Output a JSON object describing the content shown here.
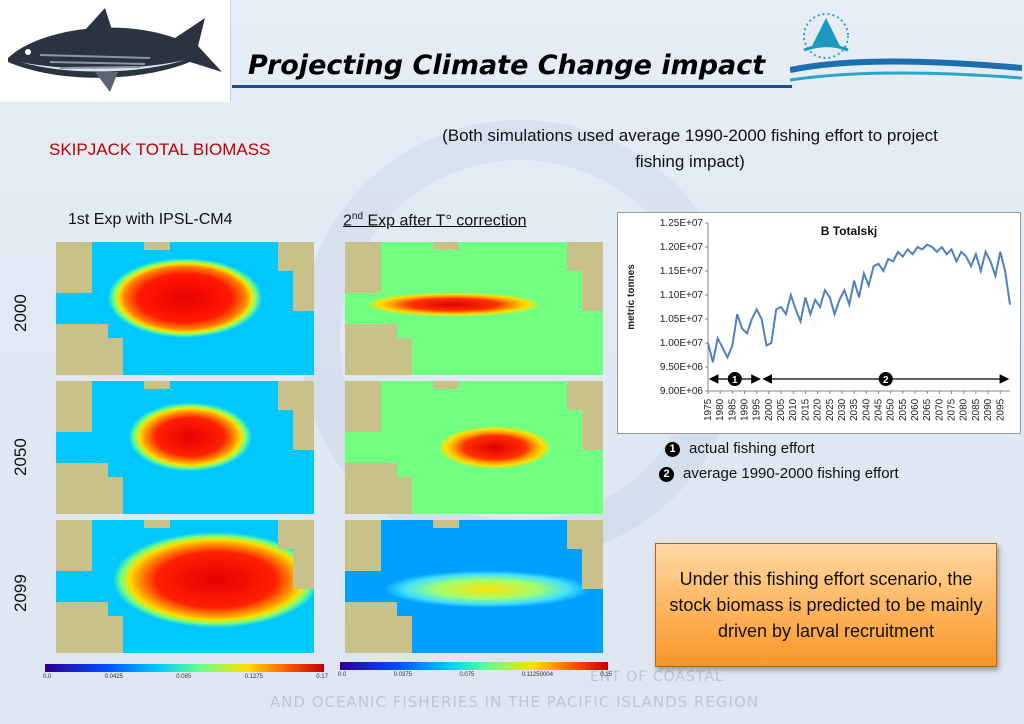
{
  "title": "Projecting Climate Change impact",
  "subtitle": "SKIPJACK TOTAL BIOMASS",
  "note": "(Both simulations used average 1990-2000 fishing effort to project fishing impact)",
  "experiments": {
    "exp1": "1st Exp with IPSL-CM4",
    "exp2_prefix": "2",
    "exp2_sup": "nd",
    "exp2_suffix": " Exp after T° correction"
  },
  "years": [
    "2000",
    "2050",
    "2099"
  ],
  "colorbars": {
    "left": [
      "0.0",
      "0.0425",
      "0.085",
      "0.1275",
      "0.17"
    ],
    "right": [
      "0.0",
      "0.0375",
      "0.075",
      "0.11250004",
      "0.15"
    ]
  },
  "legend": {
    "item1_num": "1",
    "item1": "actual fishing effort",
    "item2_num": "2",
    "item2": "average 1990-2000 fishing effort"
  },
  "callout": "Under this fishing effort scenario, the stock biomass is predicted to be mainly driven by larval recruitment",
  "watermark": [
    "ENT OF COASTAL",
    "AND OCEANIC FISHERIES IN THE PACIFIC ISLANDS REGION"
  ],
  "colors": {
    "title_rule": "#1b4f8f",
    "subtitle": "#c00000",
    "series": "#4f81bd",
    "callout": "#f7962a"
  },
  "chart_data": {
    "type": "line",
    "title": "B Totalskj",
    "ylabel": "metric tonnes",
    "ylim": [
      9000000,
      12500000
    ],
    "yticks": [
      "9.00E+06",
      "9.50E+06",
      "1.00E+07",
      "1.05E+07",
      "1.10E+07",
      "1.15E+07",
      "1.20E+07",
      "1.25E+07"
    ],
    "xticks": [
      "1975",
      "1980",
      "1985",
      "1990",
      "1995",
      "2000",
      "2005",
      "2010",
      "2015",
      "2020",
      "2025",
      "2030",
      "2035",
      "2040",
      "2045",
      "2050",
      "2055",
      "2060",
      "2065",
      "2070",
      "2075",
      "2080",
      "2085",
      "2090",
      "2095"
    ],
    "x": [
      1975,
      1977,
      1979,
      1981,
      1983,
      1985,
      1987,
      1989,
      1991,
      1993,
      1995,
      1997,
      1999,
      2001,
      2003,
      2005,
      2007,
      2009,
      2011,
      2013,
      2015,
      2017,
      2019,
      2021,
      2023,
      2025,
      2027,
      2029,
      2031,
      2033,
      2035,
      2037,
      2039,
      2041,
      2043,
      2045,
      2047,
      2049,
      2051,
      2053,
      2055,
      2057,
      2059,
      2061,
      2063,
      2065,
      2067,
      2069,
      2071,
      2073,
      2075,
      2077,
      2079,
      2081,
      2083,
      2085,
      2087,
      2089,
      2091,
      2093,
      2095,
      2097,
      2099
    ],
    "y": [
      10000000,
      9600000,
      10100000,
      9900000,
      9700000,
      9950000,
      10600000,
      10300000,
      10200000,
      10500000,
      10700000,
      10500000,
      9950000,
      10000000,
      10700000,
      10750000,
      10600000,
      11000000,
      10700000,
      10450000,
      10950000,
      10600000,
      10900000,
      10750000,
      11100000,
      10950000,
      10600000,
      10900000,
      11100000,
      10800000,
      11300000,
      10950000,
      11450000,
      11200000,
      11600000,
      11650000,
      11500000,
      11750000,
      11700000,
      11900000,
      11800000,
      11950000,
      11850000,
      12000000,
      11950000,
      12050000,
      12000000,
      11900000,
      12000000,
      11850000,
      11950000,
      11700000,
      11900000,
      11800000,
      11600000,
      11850000,
      11500000,
      11900000,
      11700000,
      11400000,
      11900000,
      11500000,
      10800000
    ],
    "phases": [
      {
        "label": "1",
        "x": [
          1975,
          1997
        ]
      },
      {
        "label": "2",
        "x": [
          1997,
          2099
        ]
      }
    ],
    "grid": true,
    "legend": "none"
  }
}
